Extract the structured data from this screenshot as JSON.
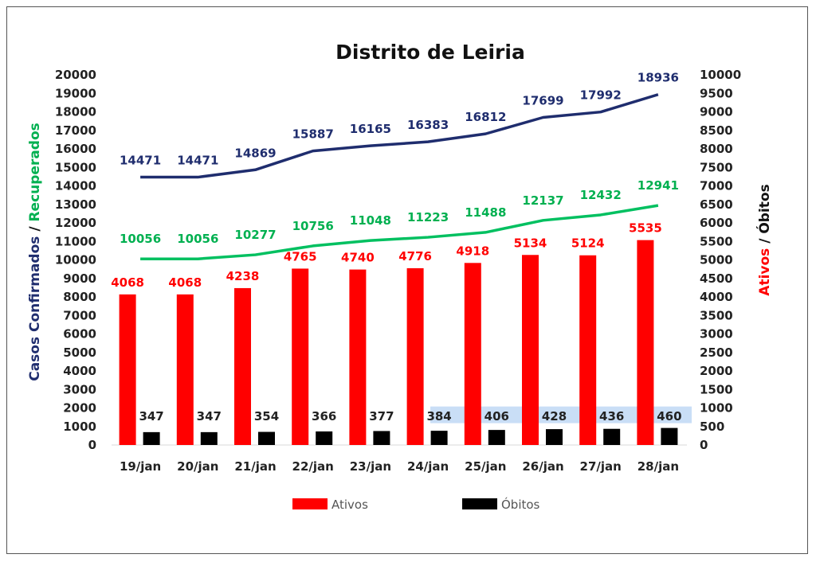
{
  "chart_data": {
    "type": "bar",
    "title": "Distrito de Leiria",
    "categories": [
      "19/jan",
      "20/jan",
      "21/jan",
      "22/jan",
      "23/jan",
      "24/jan",
      "25/jan",
      "26/jan",
      "27/jan",
      "28/jan"
    ],
    "left_axis": {
      "label_parts": [
        {
          "text": "Casos Confirmados",
          "color": "#1f2d6e"
        },
        {
          "text": " / ",
          "color": "#111111"
        },
        {
          "text": "Recuperados",
          "color": "#00b050"
        }
      ],
      "ylim": [
        0,
        20000
      ],
      "ticks": [
        "0",
        "1000",
        "2000",
        "3000",
        "4000",
        "5000",
        "6000",
        "7000",
        "8000",
        "9000",
        "10000",
        "11000",
        "12000",
        "13000",
        "14000",
        "15000",
        "16000",
        "17000",
        "18000",
        "19000",
        "20000"
      ]
    },
    "right_axis": {
      "label_parts": [
        {
          "text": "Ativos",
          "color": "#ff0000"
        },
        {
          "text": " / ",
          "color": "#111111"
        },
        {
          "text": "Óbitos",
          "color": "#111111"
        }
      ],
      "ylim": [
        0,
        10000
      ],
      "ticks": [
        "0",
        "500",
        "1000",
        "1500",
        "2000",
        "2500",
        "3000",
        "3500",
        "4000",
        "4500",
        "5000",
        "5500",
        "6000",
        "6500",
        "7000",
        "7500",
        "8000",
        "8500",
        "9000",
        "9500",
        "10000"
      ]
    },
    "series": [
      {
        "name": "Ativos",
        "kind": "bar",
        "axis": "right",
        "color": "#ff0000",
        "values": [
          4068,
          4068,
          4238,
          4765,
          4740,
          4776,
          4918,
          5134,
          5124,
          5535
        ]
      },
      {
        "name": "Óbitos",
        "kind": "bar",
        "axis": "right",
        "color": "#000000",
        "values": [
          347,
          347,
          354,
          366,
          377,
          384,
          406,
          428,
          436,
          460
        ]
      },
      {
        "kind": "line",
        "axis": "left",
        "color": "#1f2d6e",
        "values": [
          14471,
          14471,
          14869,
          15887,
          16165,
          16383,
          16812,
          17699,
          17992,
          18936
        ]
      },
      {
        "kind": "line",
        "axis": "left",
        "color": "#00c060",
        "values": [
          10056,
          10056,
          10277,
          10756,
          11048,
          11223,
          11488,
          12137,
          12432,
          12941
        ]
      }
    ],
    "legend": {
      "position": "bottom",
      "entries": [
        "Ativos",
        "Óbitos"
      ]
    },
    "grid": false
  }
}
